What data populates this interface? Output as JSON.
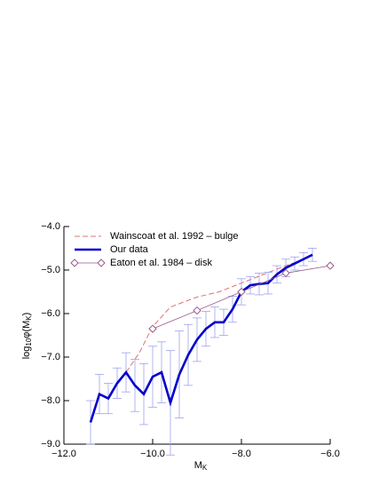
{
  "chart_data": {
    "type": "line",
    "xlabel": [
      "M",
      "K"
    ],
    "ylabel": [
      "log",
      "10",
      "φ(M",
      "K",
      ")"
    ],
    "xlim": [
      -12,
      -6
    ],
    "ylim": [
      -9,
      -4
    ],
    "xticks": [
      {
        "value": -12,
        "label": "−12.0"
      },
      {
        "value": -10,
        "label": "−10.0"
      },
      {
        "value": -8,
        "label": "−8.0"
      },
      {
        "value": -6,
        "label": "−6.0"
      }
    ],
    "yticks": [
      {
        "value": -9,
        "label": "−9.0"
      },
      {
        "value": -8,
        "label": "−8.0"
      },
      {
        "value": -7,
        "label": "−7.0"
      },
      {
        "value": -6,
        "label": "−6.0"
      },
      {
        "value": -5,
        "label": "−5.0"
      },
      {
        "value": -4,
        "label": "−4.0"
      }
    ],
    "legend": "upper left",
    "series": [
      {
        "name": "Wainscoat et al. 1992 – bulge",
        "color": "#e07070",
        "style": "dashed",
        "x": [
          -10.7,
          -10.3,
          -10.0,
          -9.6,
          -9.0,
          -8.5,
          -8.0,
          -7.5,
          -7.0,
          -6.5
        ],
        "values": [
          -7.5,
          -6.9,
          -6.3,
          -5.85,
          -5.62,
          -5.5,
          -5.3,
          -5.1,
          -4.9,
          -4.72
        ]
      },
      {
        "name": "Our data",
        "color": "#0000cc",
        "style": "thick",
        "error_color": "#9da2ee",
        "x": [
          -11.4,
          -11.2,
          -11.0,
          -10.8,
          -10.6,
          -10.4,
          -10.2,
          -10.0,
          -9.8,
          -9.6,
          -9.4,
          -9.2,
          -9.0,
          -8.8,
          -8.6,
          -8.4,
          -8.2,
          -8.0,
          -7.8,
          -7.6,
          -7.4,
          -7.2,
          -7.0,
          -6.8,
          -6.6,
          -6.4
        ],
        "values": [
          -8.5,
          -7.85,
          -7.95,
          -7.6,
          -7.35,
          -7.65,
          -7.85,
          -7.45,
          -7.35,
          -8.05,
          -7.4,
          -6.95,
          -6.6,
          -6.35,
          -6.2,
          -6.2,
          -5.9,
          -5.5,
          -5.35,
          -5.32,
          -5.3,
          -5.1,
          -4.95,
          -4.85,
          -4.75,
          -4.65
        ],
        "errors": [
          0.5,
          0.45,
          0.35,
          0.35,
          0.45,
          0.6,
          0.7,
          0.7,
          0.7,
          1.2,
          1.0,
          0.7,
          0.5,
          0.4,
          0.35,
          0.3,
          0.3,
          0.3,
          0.2,
          0.25,
          0.25,
          0.2,
          0.2,
          0.15,
          0.15,
          0.15
        ]
      },
      {
        "name": "Eaton et al. 1984 – disk",
        "color": "#9a5a8a",
        "style": "diamond",
        "x": [
          -10.0,
          -9.0,
          -8.0,
          -7.0,
          -6.0
        ],
        "values": [
          -6.35,
          -5.93,
          -5.5,
          -5.07,
          -4.9
        ]
      }
    ]
  }
}
